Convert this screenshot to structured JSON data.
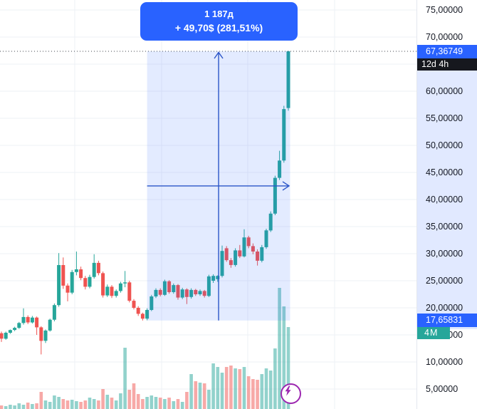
{
  "tooltip": {
    "duration": "1 187д",
    "change": "+ 49,70$ (281,51%)"
  },
  "axis": {
    "labels": [
      {
        "text": "75,00000",
        "price": 75
      },
      {
        "text": "70,00000",
        "price": 70
      },
      {
        "text": "65,00000",
        "price": 65
      },
      {
        "text": "60,00000",
        "price": 60
      },
      {
        "text": "55,00000",
        "price": 55
      },
      {
        "text": "50,00000",
        "price": 50
      },
      {
        "text": "45,00000",
        "price": 45
      },
      {
        "text": "40,00000",
        "price": 40
      },
      {
        "text": "35,00000",
        "price": 35
      },
      {
        "text": "30,00000",
        "price": 30
      },
      {
        "text": "25,00000",
        "price": 25
      },
      {
        "text": "20,00000",
        "price": 20
      },
      {
        "text": "15,00000",
        "price": 15
      },
      {
        "text": "10,00000",
        "price": 10
      },
      {
        "text": "5,00000",
        "price": 5
      }
    ],
    "current_price_label": "67,36749",
    "countdown_label": "12d 4h",
    "measure_start_label": "17,65831",
    "volume_label": "4M"
  },
  "colors": {
    "up": "#26a69a",
    "down": "#ef5350",
    "volume_up": "rgba(38,166,154,0.5)",
    "volume_down": "rgba(239,83,80,0.5)",
    "grid": "#eef0f6",
    "selection_fill": "rgba(41,98,255,0.13)",
    "arrow": "#2b55c8",
    "accent_blue": "#2962ff",
    "countdown_bg": "#16181e",
    "volume_badge_bg": "#26a69a",
    "dotted_line": "#42464e",
    "axis_text": "#131722",
    "axis_highlight": "rgba(41,98,255,0.14)",
    "flash_purple": "#9c27b0"
  },
  "chart_data": {
    "type": "candlestick",
    "title": "",
    "ylabel": "",
    "price_axis_visible_range": [
      5,
      75
    ],
    "grid": true,
    "candles_ohlc": [
      [
        15.3,
        15.6,
        13.7,
        14.3
      ],
      [
        14.3,
        15.6,
        14.1,
        15.4
      ],
      [
        15.4,
        16.0,
        15.2,
        15.9
      ],
      [
        15.9,
        16.5,
        15.7,
        16.3
      ],
      [
        16.3,
        17.4,
        16.1,
        17.2
      ],
      [
        17.2,
        19.9,
        16.9,
        18.3
      ],
      [
        18.3,
        18.6,
        17.0,
        17.3
      ],
      [
        17.3,
        18.5,
        17.1,
        18.2
      ],
      [
        18.2,
        18.4,
        15.0,
        16.4
      ],
      [
        16.4,
        16.6,
        11.4,
        13.9
      ],
      [
        13.9,
        16.0,
        13.5,
        15.8
      ],
      [
        15.8,
        18.0,
        15.6,
        17.8
      ],
      [
        17.8,
        20.8,
        17.5,
        20.5
      ],
      [
        20.5,
        30.1,
        20.2,
        27.9
      ],
      [
        27.9,
        29.3,
        23.5,
        24.1
      ],
      [
        24.1,
        24.5,
        21.2,
        22.8
      ],
      [
        22.8,
        27.0,
        22.5,
        26.6
      ],
      [
        26.6,
        30.4,
        26.0,
        27.1
      ],
      [
        27.1,
        27.6,
        25.1,
        25.5
      ],
      [
        25.5,
        25.9,
        23.4,
        23.9
      ],
      [
        23.9,
        26.1,
        23.6,
        25.7
      ],
      [
        25.7,
        29.9,
        25.4,
        28.3
      ],
      [
        28.3,
        28.7,
        26.0,
        26.4
      ],
      [
        26.4,
        26.7,
        21.9,
        22.3
      ],
      [
        22.3,
        24.3,
        22.0,
        23.9
      ],
      [
        23.9,
        24.2,
        21.8,
        22.2
      ],
      [
        22.2,
        23.4,
        21.9,
        23.1
      ],
      [
        23.1,
        24.8,
        22.8,
        24.5
      ],
      [
        24.5,
        26.8,
        23.8,
        24.7
      ],
      [
        24.7,
        25.0,
        21.0,
        21.3
      ],
      [
        21.3,
        21.6,
        19.7,
        20.0
      ],
      [
        20.0,
        20.3,
        18.5,
        18.9
      ],
      [
        18.9,
        19.1,
        17.66,
        18.0
      ],
      [
        18.0,
        19.9,
        17.7,
        19.6
      ],
      [
        19.6,
        22.4,
        19.4,
        22.1
      ],
      [
        22.1,
        23.6,
        21.8,
        23.3
      ],
      [
        23.3,
        23.6,
        22.1,
        22.4
      ],
      [
        22.4,
        25.2,
        22.2,
        24.9
      ],
      [
        24.9,
        25.1,
        22.6,
        22.9
      ],
      [
        22.9,
        24.5,
        22.6,
        24.2
      ],
      [
        24.2,
        24.4,
        21.5,
        21.9
      ],
      [
        21.9,
        23.7,
        21.6,
        23.4
      ],
      [
        23.4,
        23.6,
        20.7,
        22.0
      ],
      [
        22.0,
        23.6,
        21.7,
        23.3
      ],
      [
        23.3,
        23.5,
        22.2,
        22.5
      ],
      [
        22.5,
        23.4,
        22.2,
        23.1
      ],
      [
        23.1,
        23.3,
        21.9,
        22.2
      ],
      [
        22.2,
        26.1,
        22.0,
        25.8
      ],
      [
        25.0,
        26.2,
        24.6,
        25.9
      ],
      [
        25.3,
        26.0,
        24.8,
        25.9
      ],
      [
        25.9,
        31.5,
        25.6,
        30.5
      ],
      [
        31.0,
        31.4,
        28.5,
        28.8
      ],
      [
        28.8,
        29.2,
        27.4,
        27.9
      ],
      [
        27.9,
        31.0,
        27.6,
        30.6
      ],
      [
        30.6,
        31.6,
        29.2,
        29.5
      ],
      [
        29.5,
        34.5,
        29.3,
        33.0
      ],
      [
        33.0,
        33.3,
        31.0,
        31.4
      ],
      [
        31.4,
        31.9,
        29.9,
        30.4
      ],
      [
        30.4,
        30.8,
        27.8,
        28.7
      ],
      [
        28.7,
        31.6,
        28.4,
        31.2
      ],
      [
        31.2,
        34.6,
        30.9,
        34.3
      ],
      [
        34.3,
        37.8,
        34.0,
        37.4
      ],
      [
        37.4,
        44.4,
        37.1,
        44.0
      ],
      [
        44.0,
        49.0,
        43.6,
        47.2
      ],
      [
        47.2,
        57.3,
        46.8,
        56.7
      ],
      [
        56.9,
        67.45,
        56.4,
        67.36749
      ]
    ],
    "volumes_rel": [
      5,
      4,
      6,
      5,
      8,
      6,
      9,
      7,
      8,
      24,
      12,
      10,
      19,
      17,
      14,
      12,
      13,
      11,
      10,
      12,
      16,
      14,
      12,
      28,
      20,
      16,
      12,
      22,
      86,
      27,
      36,
      21,
      14,
      17,
      19,
      17,
      16,
      14,
      16,
      11,
      14,
      10,
      24,
      49,
      39,
      37,
      36,
      27,
      64,
      59,
      51,
      59,
      61,
      57,
      56,
      59,
      46,
      42,
      41,
      49,
      57,
      54,
      85,
      170,
      144,
      115
    ],
    "last_price": 67.36749,
    "measure_tool": {
      "start_bar_index": 33,
      "end_bar_index": 65,
      "from_price": 17.65831,
      "to_price": 67.36749,
      "duration_label": "1 187д",
      "change_label": "+ 49,70$ (281,51%)",
      "change_abs": 49.7,
      "change_pct": 281.51
    },
    "legend_position": "none"
  }
}
